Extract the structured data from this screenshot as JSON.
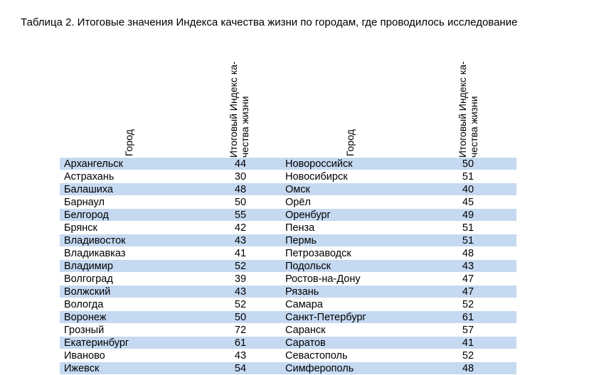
{
  "caption": "Таблица 2. Итоговые значения Индекса качества жизни по городам, где проводилось исследование",
  "headers": {
    "city": "Город",
    "index": "Итоговый Индекс ка-чества жизни"
  },
  "row_fill": "#c5d9f1",
  "rows": [
    {
      "city1": "Архангельск",
      "val1": "44",
      "city2": "Новороссийск",
      "val2": "50"
    },
    {
      "city1": "Астрахань",
      "val1": "30",
      "city2": "Новосибирск",
      "val2": "51"
    },
    {
      "city1": "Балашиха",
      "val1": "48",
      "city2": "Омск",
      "val2": "40"
    },
    {
      "city1": "Барнаул",
      "val1": "50",
      "city2": "Орёл",
      "val2": "45"
    },
    {
      "city1": "Белгород",
      "val1": "55",
      "city2": "Оренбург",
      "val2": "49"
    },
    {
      "city1": "Брянск",
      "val1": "42",
      "city2": "Пенза",
      "val2": "51"
    },
    {
      "city1": "Владивосток",
      "val1": "43",
      "city2": "Пермь",
      "val2": "51"
    },
    {
      "city1": "Владикавказ",
      "val1": "41",
      "city2": "Петрозаводск",
      "val2": "48"
    },
    {
      "city1": "Владимир",
      "val1": "52",
      "city2": "Подольск",
      "val2": "43"
    },
    {
      "city1": "Волгоград",
      "val1": "39",
      "city2": "Ростов-на-Дону",
      "val2": "47"
    },
    {
      "city1": "Волжский",
      "val1": "43",
      "city2": "Рязань",
      "val2": "47"
    },
    {
      "city1": "Вологда",
      "val1": "52",
      "city2": "Самара",
      "val2": "52"
    },
    {
      "city1": "Воронеж",
      "val1": "50",
      "city2": "Санкт-Петербург",
      "val2": "61"
    },
    {
      "city1": "Грозный",
      "val1": "72",
      "city2": "Саранск",
      "val2": "57"
    },
    {
      "city1": "Екатеринбург",
      "val1": "61",
      "city2": "Саратов",
      "val2": "41"
    },
    {
      "city1": "Иваново",
      "val1": "43",
      "city2": "Севастополь",
      "val2": "52"
    },
    {
      "city1": "Ижевск",
      "val1": "54",
      "city2": "Симферополь",
      "val2": "48"
    }
  ]
}
